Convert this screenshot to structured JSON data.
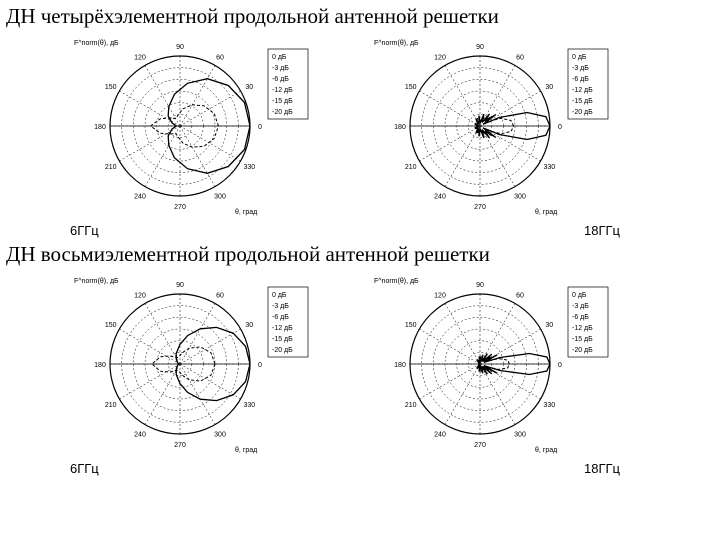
{
  "title_4el": "ДН четырёхэлементной продольной антенной решетки",
  "title_8el": "ДН восьмиэлементной продольной антенной решетки",
  "freq_low": "6ГГц",
  "freq_high": "18ГГц",
  "polar": {
    "type": "polar-pattern",
    "outer_radius": 70,
    "rings_dB": [
      0,
      -3,
      -6,
      -12,
      -15,
      -20
    ],
    "angles_deg": [
      0,
      30,
      60,
      90,
      120,
      150,
      180,
      210,
      240,
      270,
      300,
      330
    ],
    "angle_labels": [
      "0",
      "30",
      "60",
      "90",
      "120",
      "150",
      "180",
      "210",
      "240",
      "270",
      "300",
      "330"
    ],
    "axis_x_label": "θ, град",
    "yaxis_label": "F^norm(θ), дБ",
    "legend_items": [
      "0 дБ",
      "-3 дБ",
      "-6 дБ",
      "-12 дБ",
      "-15 дБ",
      "-20 дБ"
    ],
    "grid_color": "#000000",
    "grid_dash": "2,2",
    "line_color_main": "#000000",
    "line_color_alt": "#000000",
    "line_dash_alt": "3,2",
    "background": "#ffffff",
    "line_width_main": 1.3,
    "line_width_alt": 1.0,
    "legend_box_stroke": "#000000"
  },
  "patterns": {
    "low_4": {
      "main": [
        [
          0,
          1.0
        ],
        [
          20,
          0.98
        ],
        [
          40,
          0.9
        ],
        [
          60,
          0.78
        ],
        [
          80,
          0.62
        ],
        [
          100,
          0.46
        ],
        [
          120,
          0.32
        ],
        [
          140,
          0.22
        ],
        [
          160,
          0.12
        ],
        [
          180,
          0.05
        ],
        [
          200,
          0.12
        ],
        [
          220,
          0.22
        ],
        [
          240,
          0.32
        ],
        [
          260,
          0.46
        ],
        [
          280,
          0.62
        ],
        [
          300,
          0.78
        ],
        [
          320,
          0.9
        ],
        [
          340,
          0.98
        ]
      ],
      "alt": [
        [
          0,
          0.55
        ],
        [
          20,
          0.52
        ],
        [
          40,
          0.45
        ],
        [
          60,
          0.35
        ],
        [
          80,
          0.25
        ],
        [
          100,
          0.16
        ],
        [
          120,
          0.12
        ],
        [
          140,
          0.18
        ],
        [
          160,
          0.3
        ],
        [
          180,
          0.42
        ],
        [
          200,
          0.3
        ],
        [
          220,
          0.18
        ],
        [
          240,
          0.12
        ],
        [
          260,
          0.16
        ],
        [
          280,
          0.25
        ],
        [
          300,
          0.35
        ],
        [
          320,
          0.45
        ],
        [
          340,
          0.52
        ]
      ]
    },
    "high_4": {
      "main": [
        [
          0,
          1.0
        ],
        [
          8,
          0.95
        ],
        [
          16,
          0.7
        ],
        [
          24,
          0.3
        ],
        [
          30,
          0.05
        ],
        [
          36,
          0.28
        ],
        [
          44,
          0.1
        ],
        [
          52,
          0.22
        ],
        [
          60,
          0.06
        ],
        [
          72,
          0.18
        ],
        [
          84,
          0.05
        ],
        [
          96,
          0.15
        ],
        [
          108,
          0.04
        ],
        [
          120,
          0.12
        ],
        [
          140,
          0.04
        ],
        [
          160,
          0.08
        ],
        [
          180,
          0.02
        ],
        [
          200,
          0.08
        ],
        [
          220,
          0.04
        ],
        [
          240,
          0.12
        ],
        [
          252,
          0.04
        ],
        [
          264,
          0.15
        ],
        [
          276,
          0.05
        ],
        [
          288,
          0.18
        ],
        [
          300,
          0.06
        ],
        [
          308,
          0.22
        ],
        [
          316,
          0.1
        ],
        [
          324,
          0.28
        ],
        [
          330,
          0.05
        ],
        [
          336,
          0.3
        ],
        [
          344,
          0.7
        ],
        [
          352,
          0.95
        ]
      ],
      "alt": [
        [
          0,
          0.48
        ],
        [
          10,
          0.45
        ],
        [
          20,
          0.32
        ],
        [
          30,
          0.12
        ],
        [
          40,
          0.22
        ],
        [
          55,
          0.08
        ],
        [
          70,
          0.16
        ],
        [
          90,
          0.05
        ],
        [
          110,
          0.12
        ],
        [
          130,
          0.04
        ],
        [
          150,
          0.08
        ],
        [
          180,
          0.02
        ],
        [
          210,
          0.08
        ],
        [
          230,
          0.04
        ],
        [
          250,
          0.12
        ],
        [
          270,
          0.05
        ],
        [
          290,
          0.16
        ],
        [
          305,
          0.08
        ],
        [
          320,
          0.22
        ],
        [
          330,
          0.12
        ],
        [
          340,
          0.32
        ],
        [
          350,
          0.45
        ]
      ]
    },
    "low_8": {
      "main": [
        [
          0,
          1.0
        ],
        [
          15,
          0.97
        ],
        [
          30,
          0.88
        ],
        [
          45,
          0.74
        ],
        [
          60,
          0.58
        ],
        [
          75,
          0.42
        ],
        [
          90,
          0.28
        ],
        [
          110,
          0.16
        ],
        [
          130,
          0.08
        ],
        [
          150,
          0.04
        ],
        [
          180,
          0.02
        ],
        [
          210,
          0.04
        ],
        [
          230,
          0.08
        ],
        [
          250,
          0.16
        ],
        [
          270,
          0.28
        ],
        [
          285,
          0.42
        ],
        [
          300,
          0.58
        ],
        [
          315,
          0.74
        ],
        [
          330,
          0.88
        ],
        [
          345,
          0.97
        ]
      ],
      "alt": [
        [
          0,
          0.5
        ],
        [
          20,
          0.47
        ],
        [
          40,
          0.38
        ],
        [
          60,
          0.26
        ],
        [
          80,
          0.16
        ],
        [
          100,
          0.1
        ],
        [
          120,
          0.1
        ],
        [
          140,
          0.18
        ],
        [
          160,
          0.3
        ],
        [
          180,
          0.4
        ],
        [
          200,
          0.3
        ],
        [
          220,
          0.18
        ],
        [
          240,
          0.1
        ],
        [
          260,
          0.1
        ],
        [
          280,
          0.16
        ],
        [
          300,
          0.26
        ],
        [
          320,
          0.38
        ],
        [
          340,
          0.47
        ]
      ]
    },
    "high_8": {
      "main": [
        [
          0,
          1.0
        ],
        [
          6,
          0.96
        ],
        [
          12,
          0.72
        ],
        [
          18,
          0.3
        ],
        [
          22,
          0.06
        ],
        [
          28,
          0.28
        ],
        [
          34,
          0.08
        ],
        [
          40,
          0.22
        ],
        [
          46,
          0.05
        ],
        [
          54,
          0.18
        ],
        [
          62,
          0.04
        ],
        [
          72,
          0.14
        ],
        [
          84,
          0.03
        ],
        [
          96,
          0.11
        ],
        [
          110,
          0.03
        ],
        [
          126,
          0.08
        ],
        [
          145,
          0.02
        ],
        [
          180,
          0.01
        ],
        [
          215,
          0.02
        ],
        [
          234,
          0.08
        ],
        [
          250,
          0.03
        ],
        [
          264,
          0.11
        ],
        [
          276,
          0.03
        ],
        [
          288,
          0.14
        ],
        [
          298,
          0.04
        ],
        [
          306,
          0.18
        ],
        [
          314,
          0.05
        ],
        [
          320,
          0.22
        ],
        [
          326,
          0.08
        ],
        [
          332,
          0.28
        ],
        [
          338,
          0.06
        ],
        [
          342,
          0.3
        ],
        [
          348,
          0.72
        ],
        [
          354,
          0.96
        ]
      ],
      "alt": [
        [
          0,
          0.42
        ],
        [
          8,
          0.4
        ],
        [
          16,
          0.28
        ],
        [
          24,
          0.1
        ],
        [
          32,
          0.2
        ],
        [
          42,
          0.06
        ],
        [
          54,
          0.16
        ],
        [
          68,
          0.04
        ],
        [
          84,
          0.12
        ],
        [
          100,
          0.03
        ],
        [
          120,
          0.08
        ],
        [
          150,
          0.02
        ],
        [
          180,
          0.01
        ],
        [
          210,
          0.02
        ],
        [
          240,
          0.08
        ],
        [
          260,
          0.03
        ],
        [
          276,
          0.12
        ],
        [
          292,
          0.04
        ],
        [
          306,
          0.16
        ],
        [
          318,
          0.06
        ],
        [
          328,
          0.2
        ],
        [
          336,
          0.1
        ],
        [
          344,
          0.28
        ],
        [
          352,
          0.4
        ]
      ]
    }
  }
}
